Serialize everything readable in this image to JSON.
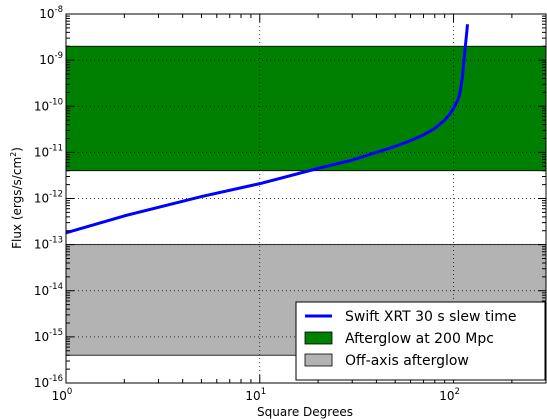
{
  "chart_data": {
    "type": "line",
    "xlabel": "Square Degrees",
    "ylabel": "Flux (ergs/s/cm",
    "ylabel_sup": "2",
    "ylabel_tail": ")",
    "x_scale": "log",
    "y_scale": "log",
    "xlim": [
      1,
      300
    ],
    "ylim": [
      1e-16,
      1e-08
    ],
    "grid": true,
    "legend_position": "bottom-right",
    "x_ticks": [
      {
        "value": 1,
        "base": "10",
        "exp": "0"
      },
      {
        "value": 10,
        "base": "10",
        "exp": "1"
      },
      {
        "value": 100,
        "base": "10",
        "exp": "2"
      }
    ],
    "y_ticks": [
      {
        "value": 1e-16,
        "base": "10",
        "exp": "-16"
      },
      {
        "value": 1e-15,
        "base": "10",
        "exp": "-15"
      },
      {
        "value": 1e-14,
        "base": "10",
        "exp": "-14"
      },
      {
        "value": 1e-13,
        "base": "10",
        "exp": "-13"
      },
      {
        "value": 1e-12,
        "base": "10",
        "exp": "-12"
      },
      {
        "value": 1e-11,
        "base": "10",
        "exp": "-11"
      },
      {
        "value": 1e-10,
        "base": "10",
        "exp": "-10"
      },
      {
        "value": 1e-09,
        "base": "10",
        "exp": "-9"
      },
      {
        "value": 1e-08,
        "base": "10",
        "exp": "-8"
      }
    ],
    "bands": [
      {
        "name": "Afterglow at 200 Mpc",
        "y_low": 4e-12,
        "y_high": 2e-09,
        "color": "#008000"
      },
      {
        "name": "Off-axis afterglow",
        "y_low": 4e-16,
        "y_high": 1e-13,
        "color": "#b3b3b3"
      }
    ],
    "series": [
      {
        "name": "Swift XRT 30 s slew time",
        "color": "#0000ff",
        "x": [
          1,
          2,
          5,
          10,
          20,
          30,
          40,
          50,
          60,
          70,
          80,
          90,
          95,
          100,
          103,
          105,
          107,
          108,
          109,
          110,
          111,
          112,
          113,
          114,
          115,
          116,
          117,
          118
        ],
        "y": [
          1.8e-13,
          4.2e-13,
          1.1e-12,
          2.1e-12,
          4.5e-12,
          6.8e-12,
          1e-11,
          1.35e-11,
          1.8e-11,
          2.4e-11,
          3.3e-11,
          5e-11,
          6.5e-11,
          9e-11,
          1.15e-10,
          1.35e-10,
          1.7e-10,
          2e-10,
          2.5e-10,
          3.2e-10,
          4.2e-10,
          6e-10,
          9e-10,
          1.4e-09,
          2e-09,
          2.8e-09,
          4e-09,
          6e-09
        ]
      }
    ]
  }
}
